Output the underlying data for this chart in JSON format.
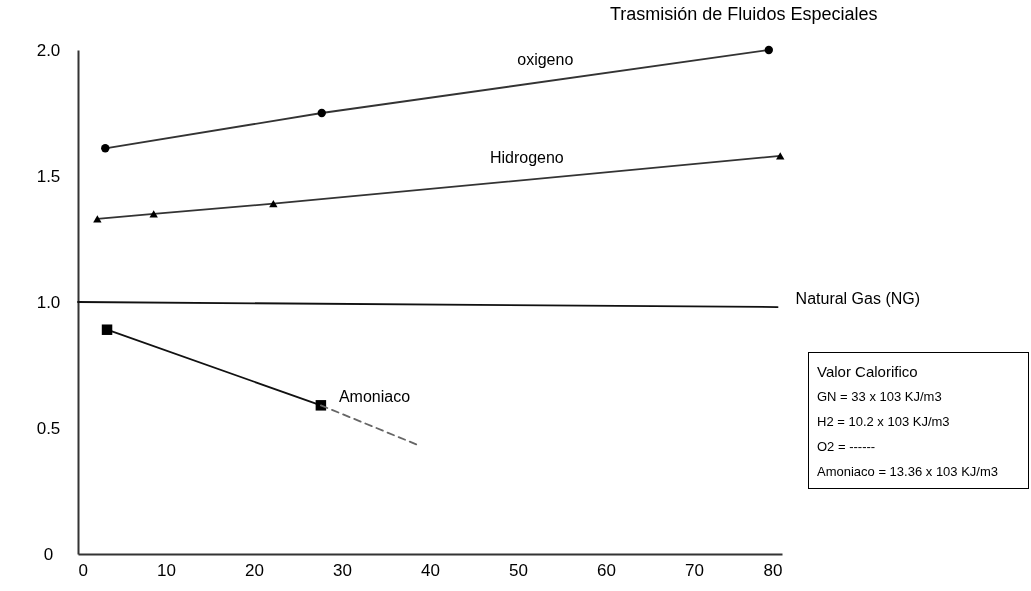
{
  "chart_data": {
    "type": "line",
    "title": "Trasmisión de Fluidos Especiales",
    "xlim": [
      0,
      80
    ],
    "xticks": [
      0,
      10,
      20,
      30,
      40,
      50,
      60,
      70,
      80
    ],
    "ylim": [
      0,
      2
    ],
    "yticks": [
      0,
      0.5,
      {
        "value": 1,
        "label": "1.0"
      },
      1.5,
      {
        "value": 2,
        "label": "2.0"
      }
    ],
    "series": [
      {
        "name": "oxigeno",
        "color": "#333333",
        "marker": "circle",
        "x": [
          3.1,
          27.7,
          78.5
        ],
        "values": [
          1.61,
          1.75,
          2.0
        ]
      },
      {
        "name": "Hidrogeno",
        "color": "#333333",
        "marker": "triangle",
        "x": [
          2.2,
          8.6,
          22.2,
          79.8
        ],
        "values": [
          1.33,
          1.35,
          1.39,
          1.58
        ]
      },
      {
        "name": "Natural Gas (NG)",
        "color": "#111111",
        "marker": "none",
        "x": [
          0,
          79.5
        ],
        "values": [
          1.0,
          0.98
        ]
      },
      {
        "name": "Amoniaco",
        "color": "#111111",
        "marker": "square",
        "x": [
          3.3,
          27.6
        ],
        "values": [
          0.89,
          0.59
        ]
      },
      {
        "color": "#666666",
        "marker": "none",
        "line_style": "dashed",
        "x": [
          27.6,
          38.8
        ],
        "values": [
          0.59,
          0.43
        ]
      }
    ],
    "annotations": [
      "Valor Calorifico",
      "GN = 33 x 103 KJ/m3",
      "H2 = 10.2 x 103 KJ/m3",
      "O2 = ------",
      "Amoniaco = 13.36 x 103 KJ/m3"
    ]
  }
}
